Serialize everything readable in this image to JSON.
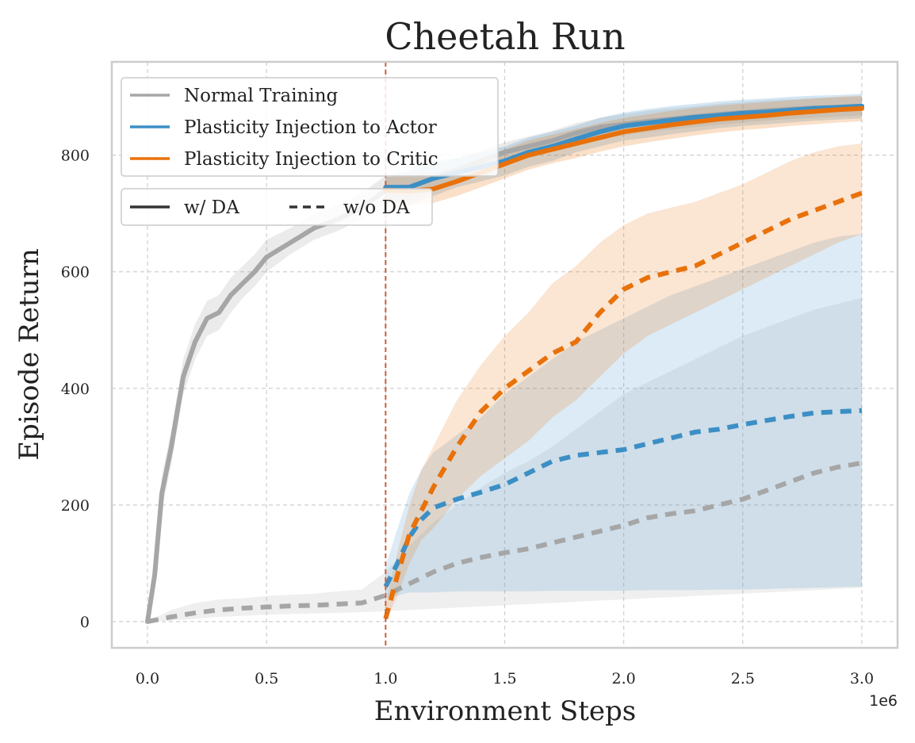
{
  "chart_data": {
    "type": "line",
    "title": "Cheetah Run",
    "xlabel": "Environment Steps",
    "ylabel": "Episode Return",
    "x_offset_label": "1e6",
    "xlim": [
      -0.15,
      3.15
    ],
    "ylim": [
      -45,
      960
    ],
    "xticks": [
      0.0,
      0.5,
      1.0,
      1.5,
      2.0,
      2.5,
      3.0
    ],
    "xtick_labels": [
      "0.0",
      "0.5",
      "1.0",
      "1.5",
      "2.0",
      "2.5",
      "3.0"
    ],
    "yticks": [
      0,
      200,
      400,
      600,
      800
    ],
    "ytick_labels": [
      "0",
      "200",
      "400",
      "600",
      "800"
    ],
    "grid": true,
    "vline": {
      "x": 1.0,
      "color": "#c8603a",
      "style": "dashed"
    },
    "colors": {
      "normal": "#a6a6a6",
      "actor": "#3c8fc5",
      "critic": "#e8710a"
    },
    "legend_methods": {
      "placement": "top-left",
      "entries": [
        {
          "label": "Normal Training",
          "color": "#a6a6a6"
        },
        {
          "label": "Plasticity Injection to Actor",
          "color": "#3c8fc5"
        },
        {
          "label": "Plasticity Injection to Critic",
          "color": "#e8710a"
        }
      ]
    },
    "legend_styles": {
      "placement": "top-left",
      "entries": [
        {
          "label": "w/ DA",
          "style": "solid"
        },
        {
          "label": "w/o DA",
          "style": "dashed"
        }
      ]
    },
    "series": [
      {
        "method": "normal",
        "style": "solid",
        "color": "#a6a6a6",
        "x": [
          0,
          0.03,
          0.06,
          0.1,
          0.15,
          0.2,
          0.25,
          0.3,
          0.35,
          0.4,
          0.45,
          0.5,
          0.6,
          0.7,
          0.8,
          0.9,
          1.0,
          1.1,
          1.2,
          1.3,
          1.4,
          1.5,
          1.6,
          1.7,
          1.8,
          1.9,
          2.0,
          2.1,
          2.2,
          2.3,
          2.4,
          2.5,
          2.6,
          2.7,
          2.8,
          2.9,
          3.0
        ],
        "y": [
          0,
          80,
          220,
          300,
          420,
          480,
          520,
          530,
          560,
          580,
          600,
          625,
          650,
          675,
          690,
          710,
          740,
          745,
          760,
          775,
          790,
          805,
          815,
          825,
          838,
          848,
          853,
          858,
          862,
          866,
          870,
          873,
          876,
          879,
          881,
          882,
          884
        ],
        "band_lower": [
          0,
          60,
          190,
          270,
          390,
          450,
          490,
          500,
          530,
          555,
          575,
          600,
          630,
          655,
          670,
          690,
          715,
          722,
          738,
          755,
          770,
          785,
          795,
          806,
          818,
          828,
          834,
          840,
          844,
          848,
          852,
          856,
          859,
          862,
          864,
          866,
          868
        ],
        "band_upper": [
          0,
          100,
          250,
          330,
          450,
          510,
          550,
          560,
          590,
          610,
          630,
          655,
          675,
          700,
          715,
          735,
          765,
          770,
          785,
          795,
          808,
          822,
          832,
          842,
          855,
          864,
          870,
          876,
          880,
          884,
          888,
          891,
          894,
          896,
          898,
          899,
          900
        ]
      },
      {
        "method": "actor",
        "style": "solid",
        "color": "#3c8fc5",
        "x": [
          1.0,
          1.1,
          1.2,
          1.3,
          1.4,
          1.5,
          1.6,
          1.7,
          1.8,
          1.9,
          2.0,
          2.1,
          2.2,
          2.3,
          2.4,
          2.5,
          2.6,
          2.7,
          2.8,
          2.9,
          3.0
        ],
        "y": [
          745,
          745,
          760,
          770,
          780,
          790,
          805,
          815,
          828,
          840,
          850,
          855,
          860,
          865,
          868,
          872,
          874,
          877,
          880,
          882,
          884
        ],
        "band_lower": [
          725,
          715,
          730,
          745,
          755,
          765,
          780,
          790,
          805,
          815,
          825,
          830,
          836,
          841,
          846,
          850,
          853,
          856,
          859,
          861,
          863
        ],
        "band_upper": [
          765,
          775,
          790,
          795,
          805,
          815,
          830,
          840,
          851,
          864,
          873,
          879,
          884,
          888,
          892,
          895,
          897,
          900,
          902,
          903,
          905
        ]
      },
      {
        "method": "critic",
        "style": "solid",
        "color": "#e8710a",
        "x": [
          1.0,
          1.1,
          1.2,
          1.3,
          1.4,
          1.5,
          1.6,
          1.7,
          1.8,
          1.9,
          2.0,
          2.1,
          2.2,
          2.3,
          2.4,
          2.5,
          2.6,
          2.7,
          2.8,
          2.9,
          3.0
        ],
        "y": [
          740,
          738,
          742,
          755,
          770,
          785,
          800,
          810,
          820,
          830,
          840,
          846,
          852,
          857,
          862,
          865,
          868,
          872,
          875,
          878,
          880
        ],
        "band_lower": [
          718,
          712,
          718,
          730,
          745,
          760,
          775,
          786,
          795,
          806,
          815,
          822,
          828,
          834,
          839,
          843,
          846,
          850,
          853,
          856,
          858
        ],
        "band_upper": [
          762,
          765,
          768,
          780,
          795,
          810,
          825,
          835,
          845,
          855,
          864,
          870,
          876,
          881,
          885,
          888,
          891,
          894,
          897,
          900,
          902
        ]
      },
      {
        "method": "normal",
        "style": "dashed",
        "color": "#a6a6a6",
        "x": [
          0,
          0.1,
          0.2,
          0.3,
          0.4,
          0.5,
          0.6,
          0.7,
          0.8,
          0.9,
          1.0,
          1.1,
          1.2,
          1.3,
          1.4,
          1.5,
          1.6,
          1.7,
          1.8,
          1.9,
          2.0,
          2.1,
          2.2,
          2.3,
          2.4,
          2.5,
          2.6,
          2.7,
          2.8,
          2.9,
          3.0
        ],
        "y": [
          0,
          8,
          15,
          20,
          23,
          25,
          27,
          28,
          30,
          32,
          45,
          65,
          85,
          100,
          110,
          118,
          125,
          135,
          145,
          155,
          165,
          178,
          185,
          190,
          200,
          210,
          225,
          240,
          255,
          265,
          272
        ],
        "band_lower": [
          0,
          2,
          5,
          8,
          10,
          12,
          13,
          14,
          15,
          16,
          18,
          20,
          22,
          24,
          26,
          28,
          30,
          32,
          34,
          36,
          38,
          40,
          42,
          44,
          46,
          48,
          50,
          52,
          54,
          56,
          58
        ],
        "band_upper": [
          0,
          20,
          32,
          38,
          40,
          44,
          46,
          48,
          52,
          55,
          85,
          130,
          170,
          200,
          230,
          255,
          275,
          300,
          330,
          360,
          390,
          410,
          430,
          450,
          470,
          490,
          505,
          520,
          535,
          545,
          555
        ]
      },
      {
        "method": "actor",
        "style": "dashed",
        "color": "#3c8fc5",
        "x": [
          1.0,
          1.05,
          1.1,
          1.15,
          1.2,
          1.3,
          1.4,
          1.5,
          1.6,
          1.7,
          1.8,
          1.9,
          2.0,
          2.1,
          2.2,
          2.3,
          2.4,
          2.5,
          2.6,
          2.7,
          2.8,
          2.9,
          3.0
        ],
        "y": [
          60,
          100,
          145,
          175,
          195,
          210,
          222,
          235,
          255,
          275,
          285,
          290,
          295,
          305,
          315,
          325,
          330,
          338,
          345,
          352,
          358,
          360,
          362
        ],
        "band_lower": [
          40,
          45,
          50,
          50,
          50,
          52,
          52,
          52,
          52,
          53,
          53,
          53,
          53,
          54,
          54,
          54,
          55,
          55,
          56,
          57,
          58,
          59,
          60
        ],
        "band_upper": [
          95,
          160,
          220,
          260,
          290,
          320,
          350,
          390,
          420,
          450,
          480,
          500,
          520,
          540,
          560,
          575,
          590,
          605,
          620,
          635,
          650,
          660,
          665
        ]
      },
      {
        "method": "critic",
        "style": "dashed",
        "color": "#e8710a",
        "x": [
          1.0,
          1.05,
          1.1,
          1.15,
          1.2,
          1.3,
          1.4,
          1.5,
          1.6,
          1.7,
          1.8,
          1.9,
          2.0,
          2.1,
          2.2,
          2.3,
          2.4,
          2.5,
          2.6,
          2.7,
          2.8,
          2.9,
          3.0
        ],
        "y": [
          5,
          80,
          150,
          190,
          230,
          300,
          360,
          400,
          430,
          460,
          480,
          530,
          570,
          590,
          600,
          610,
          630,
          650,
          670,
          690,
          705,
          720,
          735
        ],
        "band_lower": [
          0,
          45,
          100,
          140,
          160,
          210,
          250,
          280,
          310,
          350,
          380,
          420,
          460,
          490,
          510,
          530,
          550,
          570,
          590,
          610,
          630,
          650,
          665
        ],
        "band_upper": [
          30,
          120,
          200,
          260,
          300,
          380,
          440,
          490,
          530,
          580,
          610,
          650,
          680,
          700,
          710,
          720,
          735,
          750,
          770,
          790,
          805,
          815,
          820
        ]
      }
    ]
  }
}
